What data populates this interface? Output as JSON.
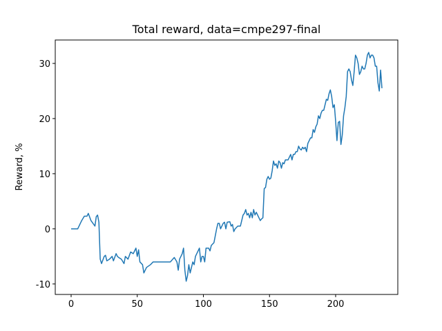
{
  "chart_data": {
    "type": "line",
    "title": "Total reward, data=cmpe297-final",
    "y_label": "Reward, %",
    "x": [
      0,
      5,
      8,
      10,
      12,
      13,
      15,
      18,
      19,
      20,
      21,
      22,
      23,
      25,
      26,
      27,
      29,
      31,
      32,
      34,
      35,
      36,
      38,
      40,
      41,
      43,
      45,
      47,
      49,
      50,
      51,
      52,
      54,
      55,
      57,
      60,
      62,
      70,
      75,
      78,
      80,
      81,
      82,
      84,
      85,
      86,
      87,
      88,
      89,
      90,
      91,
      92,
      93,
      94,
      96,
      97,
      98,
      99,
      100,
      101,
      102,
      104,
      105,
      106,
      108,
      110,
      111,
      112,
      113,
      115,
      116,
      117,
      118,
      120,
      121,
      122,
      123,
      124,
      126,
      128,
      129,
      130,
      131,
      132,
      133,
      134,
      135,
      136,
      137,
      138,
      139,
      140,
      141,
      143,
      144,
      145,
      146,
      147,
      148,
      149,
      150,
      151,
      152,
      153,
      154,
      155,
      156,
      157,
      158,
      159,
      160,
      161,
      162,
      164,
      165,
      166,
      167,
      168,
      169,
      170,
      171,
      172,
      173,
      174,
      175,
      176,
      177,
      178,
      179,
      180,
      181,
      182,
      183,
      184,
      185,
      186,
      187,
      188,
      189,
      190,
      191,
      192,
      193,
      194,
      195,
      196,
      197,
      198,
      199,
      200,
      201,
      202,
      203,
      204,
      205,
      206,
      207,
      208,
      209,
      210,
      211,
      212,
      213,
      214,
      215,
      216,
      217,
      218,
      219,
      220,
      221,
      222,
      223,
      224,
      225,
      226,
      227,
      228,
      229,
      230,
      231,
      232,
      233,
      234,
      235
    ],
    "series": [
      {
        "name": "reward",
        "color": "#1f77b4",
        "values": [
          0,
          0,
          1.5,
          2.3,
          2.3,
          2.8,
          1.5,
          0.5,
          2.2,
          2.5,
          1.2,
          -5.5,
          -6.3,
          -5,
          -4.8,
          -5.8,
          -5.5,
          -5,
          -5.8,
          -4.5,
          -5,
          -5.2,
          -5.5,
          -6.3,
          -5,
          -5.5,
          -4.2,
          -4.5,
          -3.5,
          -5,
          -3.8,
          -6,
          -6.5,
          -8,
          -7,
          -6.5,
          -6,
          -6,
          -6,
          -5.2,
          -6,
          -7.5,
          -5.5,
          -4.5,
          -3.5,
          -7.5,
          -9.5,
          -8.5,
          -6.5,
          -8,
          -7,
          -6,
          -6.5,
          -5,
          -4,
          -3.5,
          -6,
          -5,
          -5,
          -6,
          -3.5,
          -3.5,
          -4,
          -3,
          -2.5,
          0,
          1,
          1,
          0,
          1,
          1.2,
          0,
          1.2,
          1.3,
          0.5,
          0.8,
          -0.5,
          0,
          0.5,
          0.5,
          1.5,
          2.5,
          2.8,
          3.5,
          2.5,
          2.8,
          2,
          3,
          2,
          3.5,
          2.5,
          3,
          2.5,
          1.5,
          1.8,
          2,
          7.3,
          7.5,
          9,
          9.5,
          9,
          9.2,
          10.5,
          12.3,
          11.5,
          11.8,
          11,
          12.3,
          12,
          11,
          12,
          11.8,
          12.5,
          12.5,
          13,
          13.5,
          12.5,
          13.5,
          13.5,
          14,
          14,
          15,
          14.5,
          14.3,
          14.8,
          14.5,
          14.8,
          14,
          15.5,
          16,
          16.5,
          16.5,
          18,
          17.5,
          18.5,
          19,
          20.5,
          20,
          21,
          21.5,
          21.5,
          22.5,
          23.5,
          23.3,
          24.5,
          25.2,
          24,
          22,
          22.5,
          19.5,
          16,
          19.3,
          19.5,
          15.3,
          17,
          20.5,
          22,
          24,
          28.5,
          29,
          28.5,
          27,
          26,
          28.5,
          31.5,
          31,
          30,
          28,
          28.5,
          29.5,
          29,
          29,
          30,
          31.5,
          32,
          31,
          31.5,
          31.5,
          31,
          29.5,
          29.5,
          26.5,
          25,
          28.8,
          25.5
        ]
      }
    ],
    "xlim": [
      -12,
      247
    ],
    "ylim": [
      -11.9,
      34.25
    ],
    "xticks": [
      0,
      50,
      100,
      150,
      200
    ],
    "yticks": [
      -10,
      0,
      10,
      20,
      30
    ]
  }
}
